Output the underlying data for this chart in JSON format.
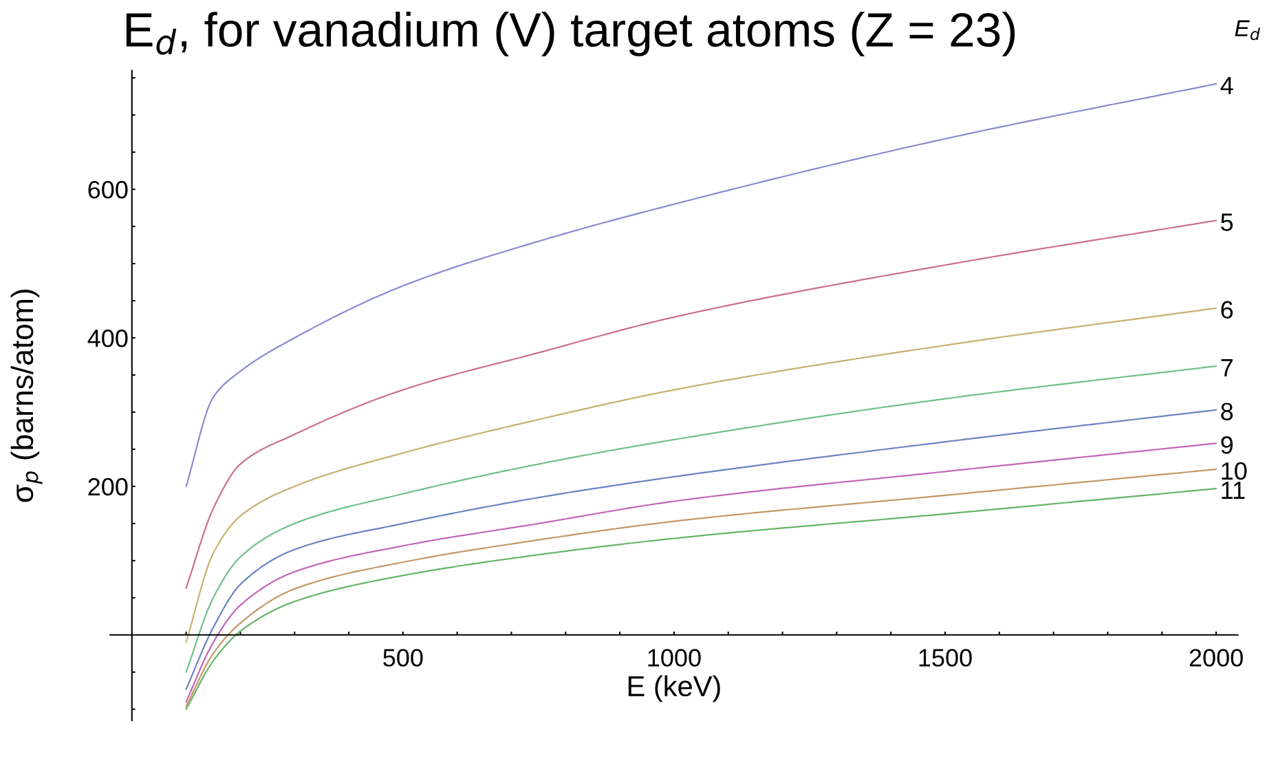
{
  "chart_data": {
    "type": "line",
    "title": "E$_{d}$, for vanadium (V) target atoms (Z = 23)",
    "xlabel": "E (keV)",
    "ylabel": "σ$_{p}$ (barns/atom)",
    "annotations": [
      "E$_{d}$"
    ],
    "x": [
      100,
      150,
      200,
      300,
      500,
      750,
      1000,
      1500,
      2000
    ],
    "series": [
      {
        "name": "4",
        "color": "#8a8ad0",
        "values": [
          200,
          320,
          355,
          400,
          470,
          530,
          580,
          668,
          742
        ]
      },
      {
        "name": "5",
        "color": "#cc6f90",
        "values": [
          63,
          170,
          230,
          270,
          330,
          380,
          428,
          498,
          558
        ]
      },
      {
        "name": "6",
        "color": "#c8b070",
        "values": [
          -10,
          110,
          160,
          200,
          245,
          290,
          330,
          390,
          440
        ]
      },
      {
        "name": "7",
        "color": "#70c08a",
        "values": [
          -50,
          50,
          105,
          150,
          190,
          230,
          263,
          318,
          362
        ]
      },
      {
        "name": "8",
        "color": "#6a84c4",
        "values": [
          -73,
          10,
          68,
          115,
          150,
          185,
          213,
          260,
          303
        ]
      },
      {
        "name": "9",
        "color": "#c466b8",
        "values": [
          -90,
          -10,
          40,
          85,
          120,
          150,
          180,
          220,
          258
        ]
      },
      {
        "name": "10",
        "color": "#c49868",
        "values": [
          -96,
          -25,
          16,
          62,
          98,
          128,
          153,
          188,
          223
        ]
      },
      {
        "name": "11",
        "color": "#66b466",
        "values": [
          -100,
          -35,
          5,
          45,
          80,
          108,
          130,
          163,
          197
        ]
      }
    ],
    "xlim": [
      -40,
      2040
    ],
    "ylim": [
      -115,
      760
    ],
    "xticks": [
      {
        "value": 100,
        "label": null
      },
      {
        "value": 200,
        "label": null
      },
      {
        "value": 300,
        "label": null
      },
      {
        "value": 400,
        "label": null
      },
      500,
      {
        "value": 600,
        "label": null
      },
      {
        "value": 700,
        "label": null
      },
      {
        "value": 800,
        "label": null
      },
      {
        "value": 900,
        "label": null
      },
      1000,
      {
        "value": 1100,
        "label": null
      },
      {
        "value": 1200,
        "label": null
      },
      {
        "value": 1300,
        "label": null
      },
      {
        "value": 1400,
        "label": null
      },
      1500,
      {
        "value": 1600,
        "label": null
      },
      {
        "value": 1700,
        "label": null
      },
      {
        "value": 1800,
        "label": null
      },
      {
        "value": 1900,
        "label": null
      },
      2000
    ],
    "yticks": [
      {
        "value": -100,
        "label": null
      },
      {
        "value": -50,
        "label": null
      },
      {
        "value": 50,
        "label": null
      },
      {
        "value": 100,
        "label": null
      },
      {
        "value": 150,
        "label": null
      },
      200,
      {
        "value": 250,
        "label": null
      },
      {
        "value": 300,
        "label": null
      },
      {
        "value": 350,
        "label": null
      },
      400,
      {
        "value": 450,
        "label": null
      },
      {
        "value": 500,
        "label": null
      },
      {
        "value": 550,
        "label": null
      },
      600,
      {
        "value": 650,
        "label": null
      },
      {
        "value": 700,
        "label": null
      },
      {
        "value": 750,
        "label": null
      }
    ],
    "grid": false,
    "legend": false,
    "marker": "none",
    "line_style": "solid"
  }
}
